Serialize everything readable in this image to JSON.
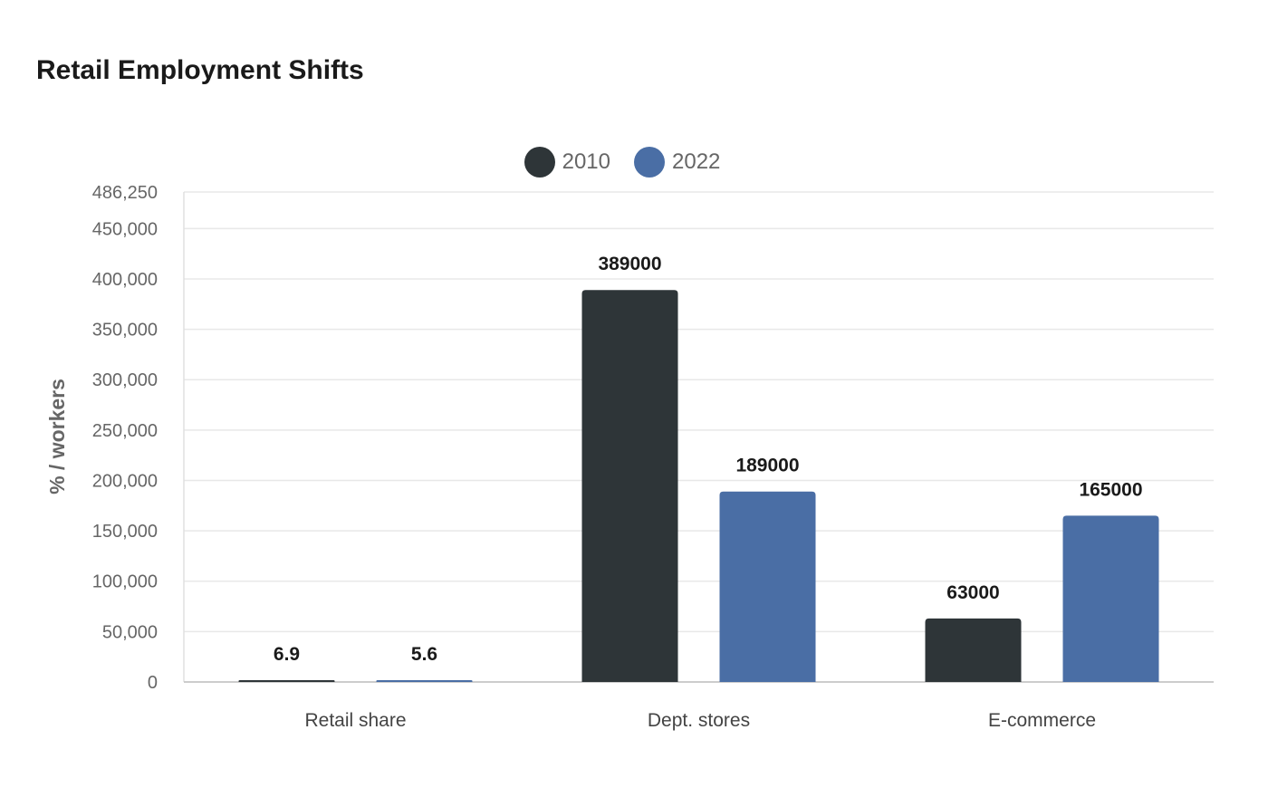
{
  "chart_data": {
    "type": "bar",
    "title": "Retail Employment Shifts",
    "xlabel": "",
    "ylabel": "% / workers",
    "categories": [
      "Retail share",
      "Dept. stores",
      "E-commerce"
    ],
    "series": [
      {
        "name": "2010",
        "values": [
          6.9,
          389000,
          63000
        ],
        "labels": [
          "6.9",
          "389000",
          "63000"
        ]
      },
      {
        "name": "2022",
        "values": [
          5.6,
          189000,
          165000
        ],
        "labels": [
          "5.6",
          "189000",
          "165000"
        ]
      }
    ],
    "ylim": [
      0,
      486250
    ],
    "yticks": [
      {
        "value": 0,
        "label": "0"
      },
      {
        "value": 50000,
        "label": "50,000"
      },
      {
        "value": 100000,
        "label": "100,000"
      },
      {
        "value": 150000,
        "label": "150,000"
      },
      {
        "value": 200000,
        "label": "200,000"
      },
      {
        "value": 250000,
        "label": "250,000"
      },
      {
        "value": 300000,
        "label": "300,000"
      },
      {
        "value": 350000,
        "label": "350,000"
      },
      {
        "value": 400000,
        "label": "400,000"
      },
      {
        "value": 450000,
        "label": "450,000"
      },
      {
        "value": 486250,
        "label": "486,250"
      }
    ],
    "grid": true,
    "legend_position": "top-center",
    "colors": {
      "2010": "#2e3538",
      "2022": "#4a6ea5"
    }
  }
}
